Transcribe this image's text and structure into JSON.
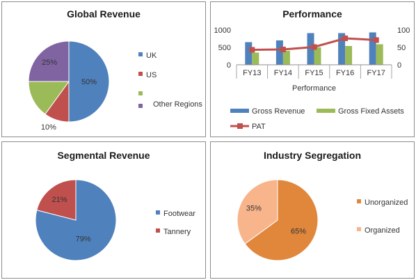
{
  "chart_data": [
    {
      "type": "pie",
      "title": "Global Revenue",
      "categories": [
        "UK",
        "US",
        "Other Regions",
        ""
      ],
      "values": [
        50,
        10,
        15,
        25
      ],
      "data_labels": [
        "50%",
        "10%",
        "",
        "25%"
      ],
      "colors": [
        "#4f81bd",
        "#c0504d",
        "#9bbb59",
        "#8064a2"
      ],
      "legend_placement": "right"
    },
    {
      "type": "bar",
      "title": "Performance",
      "categories": [
        "FY13",
        "FY14",
        "FY15",
        "FY16",
        "FY17"
      ],
      "xlabel": "Performance",
      "series": [
        {
          "name": "Gross Revenue",
          "type": "bar",
          "values": [
            650,
            700,
            910,
            910,
            930
          ],
          "color": "#4f81bd"
        },
        {
          "name": "Gross Fixed Assets",
          "type": "bar",
          "values": [
            350,
            400,
            500,
            540,
            590
          ],
          "color": "#9bbb59"
        },
        {
          "name": "PAT",
          "type": "line",
          "axis": "secondary",
          "values": [
            43,
            44,
            51,
            76,
            71
          ],
          "color": "#c0504d"
        }
      ],
      "yticks": [
        "0",
        "500",
        "1000"
      ],
      "y2ticks": [
        "0",
        "50",
        "100"
      ],
      "ylim": [
        0,
        1000
      ],
      "y2lim": [
        0,
        100
      ],
      "grid": false,
      "legend_placement": "bottom"
    },
    {
      "type": "pie",
      "title": "Segmental Revenue",
      "categories": [
        "Footwear",
        "Tannery"
      ],
      "values": [
        79,
        21
      ],
      "data_labels": [
        "79%",
        "21%"
      ],
      "colors": [
        "#4f81bd",
        "#c0504d"
      ],
      "legend_placement": "right"
    },
    {
      "type": "pie",
      "title": "Industry Segregation",
      "categories": [
        "Unorganized",
        "Organized"
      ],
      "values": [
        65,
        35
      ],
      "data_labels": [
        "65%",
        "35%"
      ],
      "colors": [
        "#e0873c",
        "#f8b48b"
      ],
      "legend_placement": "right"
    }
  ]
}
